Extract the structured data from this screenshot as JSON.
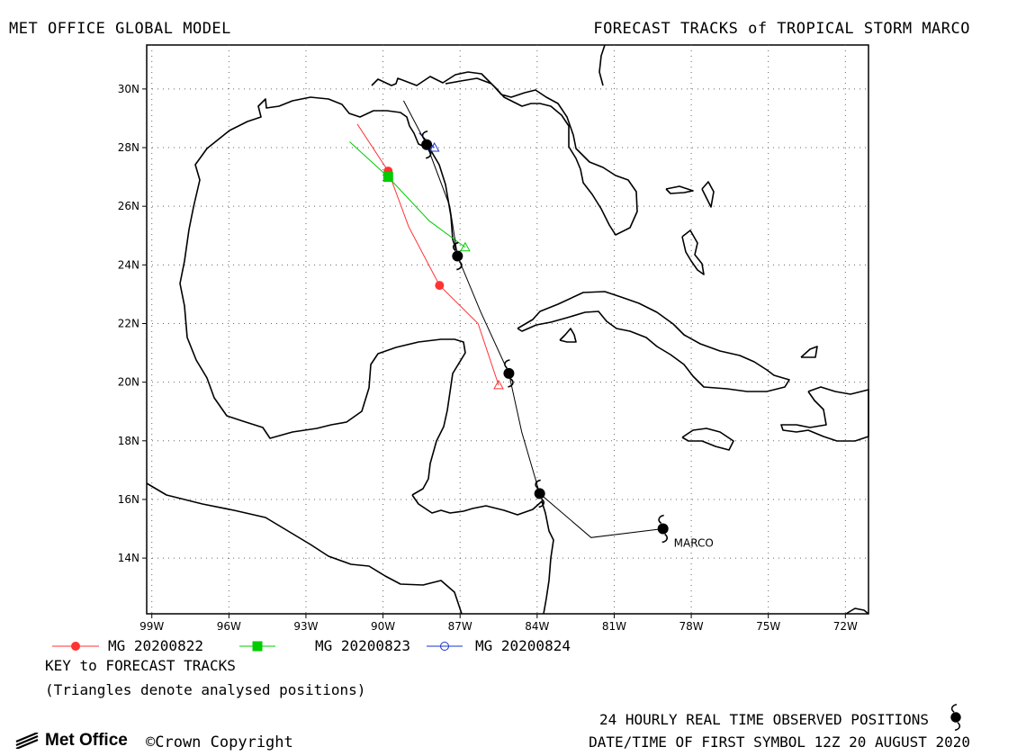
{
  "header": {
    "left_title": "MET OFFICE GLOBAL MODEL",
    "right_title": "FORECAST TRACKS of TROPICAL STORM MARCO"
  },
  "axes": {
    "lat_labels": [
      "30N",
      "28N",
      "26N",
      "24N",
      "22N",
      "20N",
      "18N",
      "16N",
      "14N"
    ],
    "lat_values": [
      30,
      28,
      26,
      24,
      22,
      20,
      18,
      16,
      14
    ],
    "lon_labels": [
      "99W",
      "96W",
      "93W",
      "90W",
      "87W",
      "84W",
      "81W",
      "78W",
      "75W",
      "72W"
    ],
    "lon_values": [
      -99,
      -96,
      -93,
      -90,
      -87,
      -84,
      -81,
      -78,
      -75,
      -72
    ],
    "lon_range": [
      -99.2,
      -71.1
    ],
    "lat_range": [
      12.1,
      31.5
    ],
    "grid": "dotted"
  },
  "storm": {
    "name": "MARCO",
    "observed_positions": [
      {
        "lon": -79.1,
        "lat": 15.0
      },
      {
        "lon": -83.9,
        "lat": 16.2
      },
      {
        "lon": -85.1,
        "lat": 20.3
      },
      {
        "lon": -87.1,
        "lat": 24.3
      },
      {
        "lon": -88.3,
        "lat": 28.1
      }
    ],
    "observed_track": [
      {
        "lon": -79.1,
        "lat": 15.0
      },
      {
        "lon": -81.9,
        "lat": 14.7
      },
      {
        "lon": -83.9,
        "lat": 16.2
      },
      {
        "lon": -84.6,
        "lat": 18.3
      },
      {
        "lon": -85.1,
        "lat": 20.3
      },
      {
        "lon": -86.2,
        "lat": 22.4
      },
      {
        "lon": -87.1,
        "lat": 24.3
      },
      {
        "lon": -87.4,
        "lat": 26.0
      },
      {
        "lon": -88.3,
        "lat": 28.1
      },
      {
        "lon": -89.2,
        "lat": 29.6
      }
    ]
  },
  "tracks": [
    {
      "label": "MG 20200822",
      "color": "#ff3333",
      "marker": "circle",
      "analysed": {
        "lon": -85.5,
        "lat": 19.9
      },
      "points": [
        {
          "lon": -85.5,
          "lat": 19.9
        },
        {
          "lon": -86.3,
          "lat": 22.0
        },
        {
          "lon": -87.8,
          "lat": 23.3
        },
        {
          "lon": -89.0,
          "lat": 25.3
        },
        {
          "lon": -89.8,
          "lat": 27.2
        },
        {
          "lon": -91.0,
          "lat": 28.8
        }
      ],
      "markers": [
        {
          "lon": -87.8,
          "lat": 23.3
        },
        {
          "lon": -89.8,
          "lat": 27.2
        }
      ]
    },
    {
      "label": "MG 20200823",
      "color": "#00cc00",
      "marker": "square",
      "analysed": {
        "lon": -86.8,
        "lat": 24.6
      },
      "points": [
        {
          "lon": -86.8,
          "lat": 24.6
        },
        {
          "lon": -88.2,
          "lat": 25.5
        },
        {
          "lon": -89.8,
          "lat": 27.0
        },
        {
          "lon": -91.3,
          "lat": 28.2
        }
      ],
      "markers": [
        {
          "lon": -89.8,
          "lat": 27.0
        }
      ]
    },
    {
      "label": "MG 20200824",
      "color": "#1a33cc",
      "marker": "open-circle",
      "analysed": {
        "lon": -88.0,
        "lat": 28.0
      },
      "points": [
        {
          "lon": -88.0,
          "lat": 28.0
        },
        {
          "lon": -88.6,
          "lat": 28.5
        }
      ],
      "markers": []
    }
  ],
  "legend": {
    "key_title": "KEY to FORECAST TRACKS",
    "triangle_note": "(Triangles denote analysed positions)"
  },
  "footer": {
    "observed_note": "24 HOURLY REAL TIME OBSERVED POSITIONS",
    "first_symbol": "DATE/TIME OF FIRST SYMBOL 12Z 20 AUGUST 2020",
    "logo_text": "Met Office",
    "copyright": "©Crown Copyright"
  }
}
